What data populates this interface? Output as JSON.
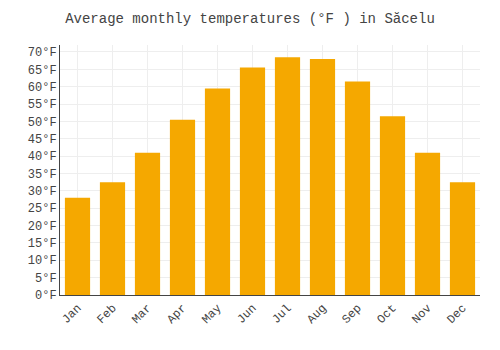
{
  "chart_data": {
    "type": "bar",
    "title": "Average monthly temperatures (°F ) in Săcelu",
    "categories": [
      "Jan",
      "Feb",
      "Mar",
      "Apr",
      "May",
      "Jun",
      "Jul",
      "Aug",
      "Sep",
      "Oct",
      "Nov",
      "Dec"
    ],
    "values": [
      28,
      32.5,
      41,
      50.5,
      59.5,
      65.5,
      68.5,
      68,
      61.5,
      51.5,
      41,
      32.5
    ],
    "color": "#F5A800",
    "ylim": [
      0,
      72
    ],
    "yticks": [
      {
        "value": 0,
        "label": "0°F"
      },
      {
        "value": 5,
        "label": "5°F"
      },
      {
        "value": 10,
        "label": "10°F"
      },
      {
        "value": 15,
        "label": "15°F"
      },
      {
        "value": 20,
        "label": "20°F"
      },
      {
        "value": 25,
        "label": "25°F"
      },
      {
        "value": 30,
        "label": "30°F"
      },
      {
        "value": 35,
        "label": "35°F"
      },
      {
        "value": 40,
        "label": "40°F"
      },
      {
        "value": 45,
        "label": "45°F"
      },
      {
        "value": 50,
        "label": "50°F"
      },
      {
        "value": 55,
        "label": "55°F"
      },
      {
        "value": 60,
        "label": "60°F"
      },
      {
        "value": 65,
        "label": "65°F"
      },
      {
        "value": 70,
        "label": "70°F"
      }
    ],
    "grid": true
  }
}
